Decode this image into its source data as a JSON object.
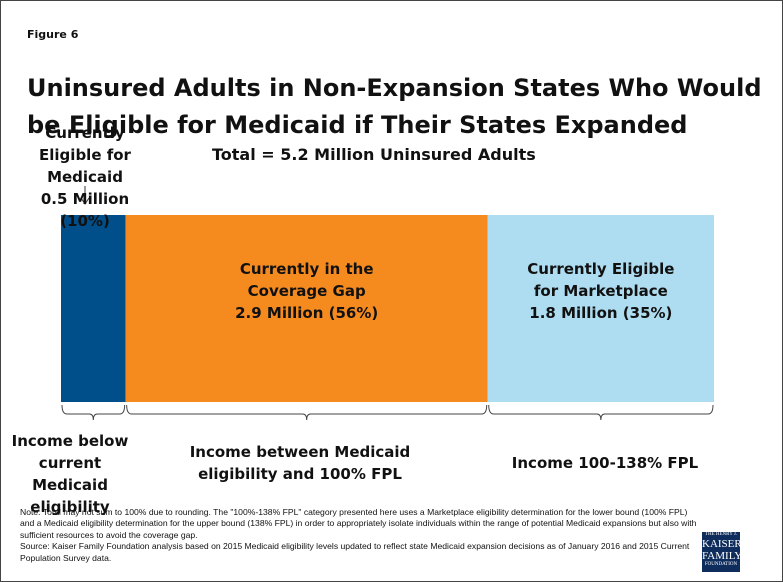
{
  "chart_data": {
    "type": "stacked-bar",
    "figure_label": "Figure 6",
    "title": "Uninsured Adults in Non-Expansion States Who Would be Eligible for Medicaid if Their States Expanded",
    "subtitle": "Total = 5.2 Million Uninsured Adults",
    "series": [
      {
        "name": "Currently Eligible for Medicaid",
        "color": "#004f8a",
        "values": [
          10
        ],
        "value_labels": [
          "0.5 Million (10%)"
        ]
      },
      {
        "name": "Currently in the Coverage Gap",
        "color": "#f58a1f",
        "values": [
          56
        ],
        "value_labels": [
          "2.9 Million (56%)"
        ]
      },
      {
        "name": "Currently Eligible for Marketplace",
        "color": "#aedcf0",
        "values": [
          35
        ],
        "value_labels": [
          "1.8 Million (35%)"
        ]
      }
    ],
    "brace_labels": [
      "Income below current Medicaid eligibility",
      "Income between Medicaid eligibility and 100% FPL",
      "Income 100-138% FPL"
    ],
    "note": "Note: Total may not sum to 100% due to rounding. The \"100%-138% FPL\" category presented here uses a Marketplace eligibility determination for the lower bound (100% FPL) and a Medicaid eligibility determination for the upper bound (138% FPL) in order to appropriately isolate individuals within the range of potential Medicaid expansions but also with sufficient resources to avoid the coverage gap.",
    "source": "Source: Kaiser Family Foundation analysis based on 2015 Medicaid eligibility levels updated to reflect state Medicaid expansion decisions as of January 2016 and 2015 Current Population Survey data.",
    "logo": [
      "THE HENRY J.",
      "KAISER",
      "FAMILY",
      "FOUNDATION"
    ]
  }
}
